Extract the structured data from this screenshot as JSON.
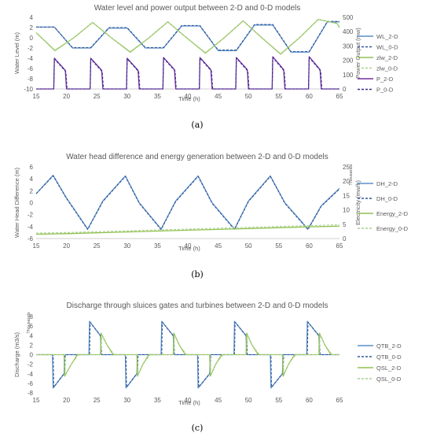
{
  "chart_data": [
    {
      "type": "line",
      "caption": "(a)",
      "title": "Water level and power output between 2-D and 0-D models",
      "xlabel": "Time (h)",
      "ylabel": "Water Level (m)",
      "y2label": "Power Output (mw)",
      "xlim": [
        15,
        65
      ],
      "xticks": [
        15,
        20,
        25,
        30,
        35,
        40,
        45,
        50,
        55,
        60,
        65
      ],
      "ylim": [
        -10,
        4
      ],
      "yticks": [
        4,
        2,
        0,
        -2,
        -4,
        -6,
        -8,
        -10
      ],
      "y2lim": [
        0,
        500
      ],
      "y2ticks": [
        500,
        400,
        300,
        200,
        100,
        0
      ],
      "legend_position": "right",
      "series": [
        {
          "name": "WL_2-D",
          "color": "#5b8fc9",
          "dash": false,
          "axis": "left",
          "x": [
            15,
            18,
            21,
            24,
            27,
            30,
            33,
            36,
            39,
            42,
            45,
            48,
            51,
            54,
            57,
            60,
            63,
            65
          ],
          "y": [
            2.1,
            2.1,
            -2,
            -2,
            1.9,
            1.9,
            -2,
            -2,
            2.3,
            2.3,
            -2.5,
            -2.5,
            2.5,
            2.5,
            -2.8,
            -2.8,
            3.1,
            3.1
          ]
        },
        {
          "name": "WL_0-D",
          "color": "#2f5597",
          "dash": true,
          "axis": "left",
          "x": [
            15,
            18,
            21,
            24,
            27,
            30,
            33,
            36,
            39,
            42,
            45,
            48,
            51,
            54,
            57,
            60,
            63,
            65
          ],
          "y": [
            2.1,
            2.1,
            -1.9,
            -1.9,
            2,
            2,
            -1.9,
            -1.9,
            2.4,
            2.4,
            -2.4,
            -2.4,
            2.6,
            2.6,
            -2.7,
            -2.7,
            3.2,
            3.2
          ]
        },
        {
          "name": "zlw_2-D",
          "color": "#92c050",
          "dash": false,
          "axis": "left",
          "x": [
            15,
            18.1,
            21.2,
            24.3,
            27.4,
            30.5,
            33.6,
            36.7,
            39.8,
            42.9,
            46,
            49.1,
            52.2,
            55.3,
            58.4,
            61.5,
            64.6,
            65
          ],
          "y": [
            1,
            -2.5,
            0,
            3,
            0,
            -2.8,
            0,
            3.1,
            0,
            -3,
            0,
            3.3,
            0,
            -3.2,
            0,
            3.6,
            2.8,
            2
          ]
        },
        {
          "name": "zlw_0-D",
          "color": "#a9d18e",
          "dash": true,
          "axis": "left",
          "x": [
            15,
            18.1,
            21.2,
            24.3,
            27.4,
            30.5,
            33.6,
            36.7,
            39.8,
            42.9,
            46,
            49.1,
            52.2,
            55.3,
            58.4,
            61.5,
            64.6,
            65
          ],
          "y": [
            1,
            -2.4,
            0,
            3,
            0,
            -2.7,
            0,
            3.1,
            0,
            -2.9,
            0,
            3.3,
            0,
            -3.1,
            0,
            3.6,
            2.8,
            2
          ]
        },
        {
          "name": "P_2-D",
          "color": "#7030a0",
          "dash": false,
          "axis": "right",
          "x": [
            15,
            17.9,
            18,
            19.8,
            20,
            23.9,
            24,
            25.8,
            26,
            29.9,
            30,
            31.8,
            32,
            35.9,
            36,
            37.8,
            38,
            41.9,
            42,
            43.8,
            44,
            47.9,
            48,
            49.8,
            50,
            53.9,
            54,
            55.8,
            56,
            59.9,
            60,
            61.8,
            62,
            65
          ],
          "y": [
            0,
            0,
            215,
            130,
            0,
            0,
            215,
            130,
            0,
            0,
            215,
            130,
            0,
            0,
            220,
            135,
            0,
            0,
            220,
            135,
            0,
            0,
            220,
            135,
            0,
            0,
            225,
            135,
            0,
            0,
            225,
            135,
            0,
            0
          ]
        },
        {
          "name": "P_0-D",
          "color": "#3a2a8a",
          "dash": true,
          "axis": "right",
          "x": [
            15,
            17.9,
            18,
            19.9,
            20.1,
            23.9,
            24,
            25.9,
            26.1,
            29.9,
            30,
            31.9,
            32.1,
            35.9,
            36,
            37.9,
            38.1,
            41.9,
            42,
            43.9,
            44.1,
            47.9,
            48,
            49.9,
            50.1,
            53.9,
            54,
            55.9,
            56.1,
            59.9,
            60,
            61.9,
            62.1,
            65
          ],
          "y": [
            0,
            0,
            210,
            120,
            0,
            0,
            210,
            120,
            0,
            0,
            210,
            120,
            0,
            0,
            215,
            125,
            0,
            0,
            215,
            125,
            0,
            0,
            215,
            125,
            0,
            0,
            220,
            125,
            0,
            0,
            220,
            125,
            0,
            0
          ]
        }
      ]
    },
    {
      "type": "line",
      "caption": "(b)",
      "title": "Water head difference and energy generation between 2-D and 0-D models",
      "xlabel": "Time (h)",
      "ylabel": "Water Head Difference (m)",
      "y2label": "Electricity (mw/h)",
      "y2unit": "Thousands",
      "xlim": [
        15,
        65
      ],
      "xticks": [
        15,
        20,
        25,
        30,
        35,
        40,
        45,
        50,
        55,
        60,
        65
      ],
      "ylim": [
        -6,
        6
      ],
      "yticks": [
        6,
        4,
        2,
        0,
        -2,
        -4,
        -6
      ],
      "y2lim": [
        0,
        25
      ],
      "y2ticks": [
        25,
        20,
        15,
        10,
        5,
        0
      ],
      "legend_position": "right",
      "series": [
        {
          "name": "DH_2-D",
          "color": "#5b8fc9",
          "dash": false,
          "axis": "left",
          "x": [
            15,
            17.8,
            20,
            23.5,
            26,
            29.7,
            32,
            35.6,
            38,
            41.7,
            44,
            47.7,
            50,
            53.6,
            56,
            59.8,
            62,
            65
          ],
          "y": [
            1.5,
            4.6,
            0.8,
            -4.4,
            0.3,
            4.5,
            0,
            -4.4,
            0.3,
            4.5,
            0,
            -4.4,
            0.3,
            4.5,
            0,
            -4.4,
            -0.5,
            2.4
          ]
        },
        {
          "name": "DH_0-D",
          "color": "#2f5597",
          "dash": true,
          "axis": "left",
          "x": [
            15,
            17.8,
            20,
            23.5,
            26,
            29.7,
            32,
            35.6,
            38,
            41.7,
            44,
            47.7,
            50,
            53.6,
            56,
            59.8,
            62,
            65
          ],
          "y": [
            1.5,
            4.5,
            0.7,
            -4.5,
            0.2,
            4.4,
            -0.1,
            -4.5,
            0.2,
            4.4,
            -0.1,
            -4.5,
            0.2,
            4.4,
            -0.1,
            -4.5,
            -0.6,
            2.3
          ]
        },
        {
          "name": "Energy_2-D",
          "color": "#92c050",
          "dash": false,
          "axis": "right",
          "x": [
            15,
            20,
            25,
            30,
            35,
            40,
            45,
            50,
            55,
            60,
            65
          ],
          "y": [
            1.5,
            1.7,
            2,
            2.3,
            2.6,
            2.9,
            3.2,
            3.5,
            3.8,
            4.1,
            4.3
          ]
        },
        {
          "name": "Energy_0-D",
          "color": "#a9d18e",
          "dash": true,
          "axis": "right",
          "x": [
            15,
            20,
            25,
            30,
            35,
            40,
            45,
            50,
            55,
            60,
            65
          ],
          "y": [
            1.9,
            2.1,
            2.4,
            2.7,
            3,
            3.3,
            3.6,
            3.9,
            4.2,
            4.5,
            4.8
          ]
        }
      ]
    },
    {
      "type": "line",
      "caption": "(c)",
      "title": "Discharge through sluices gates and turbines between 2-D and 0-D models",
      "xlabel": "Time (h)",
      "ylabel": "Discharge (m3/s)",
      "yunit": "Thousands",
      "xlim": [
        15,
        65
      ],
      "xticks": [
        15,
        20,
        25,
        30,
        35,
        40,
        45,
        50,
        55,
        60,
        65
      ],
      "ylim": [
        -8,
        8
      ],
      "yticks": [
        8,
        6,
        4,
        2,
        0,
        -2,
        -4,
        -6,
        -8
      ],
      "legend_position": "right",
      "series": [
        {
          "name": "QTB_2-D",
          "color": "#5b8fc9",
          "dash": false,
          "axis": "left",
          "x": [
            15,
            17.7,
            17.8,
            19.6,
            19.7,
            23.7,
            23.8,
            25.6,
            25.7,
            29.7,
            29.8,
            31.6,
            31.7,
            35.6,
            35.7,
            37.6,
            37.7,
            41.6,
            41.7,
            43.6,
            43.7,
            47.6,
            47.7,
            49.6,
            49.7,
            53.6,
            53.7,
            55.6,
            55.7,
            59.6,
            59.7,
            61.6,
            61.7,
            65
          ],
          "y": [
            0,
            0,
            -7,
            -4,
            0,
            0,
            7,
            4,
            0,
            0,
            -7,
            -4,
            0,
            0,
            7,
            4,
            0,
            0,
            -7,
            -4,
            0,
            0,
            7,
            4,
            0,
            0,
            -7,
            -4,
            0,
            0,
            7,
            4,
            0,
            0
          ]
        },
        {
          "name": "QTB_0-D",
          "color": "#2f5597",
          "dash": true,
          "axis": "left",
          "x": [
            15,
            17.8,
            17.9,
            19.7,
            19.8,
            23.8,
            23.9,
            25.7,
            25.8,
            29.8,
            29.9,
            31.7,
            31.8,
            35.7,
            35.8,
            37.7,
            37.8,
            41.7,
            41.8,
            43.7,
            43.8,
            47.7,
            47.8,
            49.7,
            49.8,
            53.7,
            53.8,
            55.7,
            55.8,
            59.7,
            59.8,
            61.7,
            61.8,
            65
          ],
          "y": [
            0,
            0,
            -6.8,
            -3.8,
            0,
            0,
            6.8,
            3.8,
            0,
            0,
            -6.8,
            -3.8,
            0,
            0,
            6.8,
            3.8,
            0,
            0,
            -6.8,
            -3.8,
            0,
            0,
            6.8,
            3.8,
            0,
            0,
            -6.8,
            -3.8,
            0,
            0,
            6.8,
            3.8,
            0,
            0
          ]
        },
        {
          "name": "QSL_2-D",
          "color": "#92c050",
          "dash": false,
          "axis": "left",
          "x": [
            15,
            19.6,
            19.7,
            20.8,
            21.8,
            25.6,
            25.7,
            26.7,
            27.7,
            31.6,
            31.7,
            32.6,
            33.6,
            37.6,
            37.7,
            38.6,
            39.6,
            43.6,
            43.7,
            44.6,
            45.6,
            49.6,
            49.7,
            50.6,
            51.6,
            55.6,
            55.7,
            56.6,
            57.6,
            61.6,
            61.7,
            62.6,
            63.6,
            65
          ],
          "y": [
            0,
            0,
            -4.5,
            -2,
            0,
            0,
            4.5,
            2,
            0,
            0,
            -4.5,
            -2,
            0,
            0,
            4.5,
            2,
            0,
            0,
            -4.5,
            -2,
            0,
            0,
            4.5,
            2,
            0,
            0,
            -4.5,
            -2,
            0,
            0,
            4.5,
            2,
            0,
            0
          ]
        },
        {
          "name": "QSL_0-D",
          "color": "#a9d18e",
          "dash": true,
          "axis": "left",
          "x": [
            15,
            19.7,
            19.8,
            20.9,
            22,
            25.7,
            25.8,
            26.8,
            27.9,
            31.7,
            31.8,
            32.7,
            33.8,
            37.7,
            37.8,
            38.7,
            39.8,
            43.7,
            43.8,
            44.7,
            45.8,
            49.7,
            49.8,
            50.7,
            51.8,
            55.7,
            55.8,
            56.7,
            57.8,
            61.7,
            61.8,
            62.7,
            63.8,
            65
          ],
          "y": [
            0,
            0,
            -4.2,
            -1.8,
            0,
            0,
            4.2,
            1.8,
            0,
            0,
            -4.2,
            -1.8,
            0,
            0,
            4.2,
            1.8,
            0,
            0,
            -4.2,
            -1.8,
            0,
            0,
            4.2,
            1.8,
            0,
            0,
            -4.2,
            -1.8,
            0,
            0,
            4.2,
            1.8,
            0,
            0
          ]
        }
      ]
    }
  ]
}
